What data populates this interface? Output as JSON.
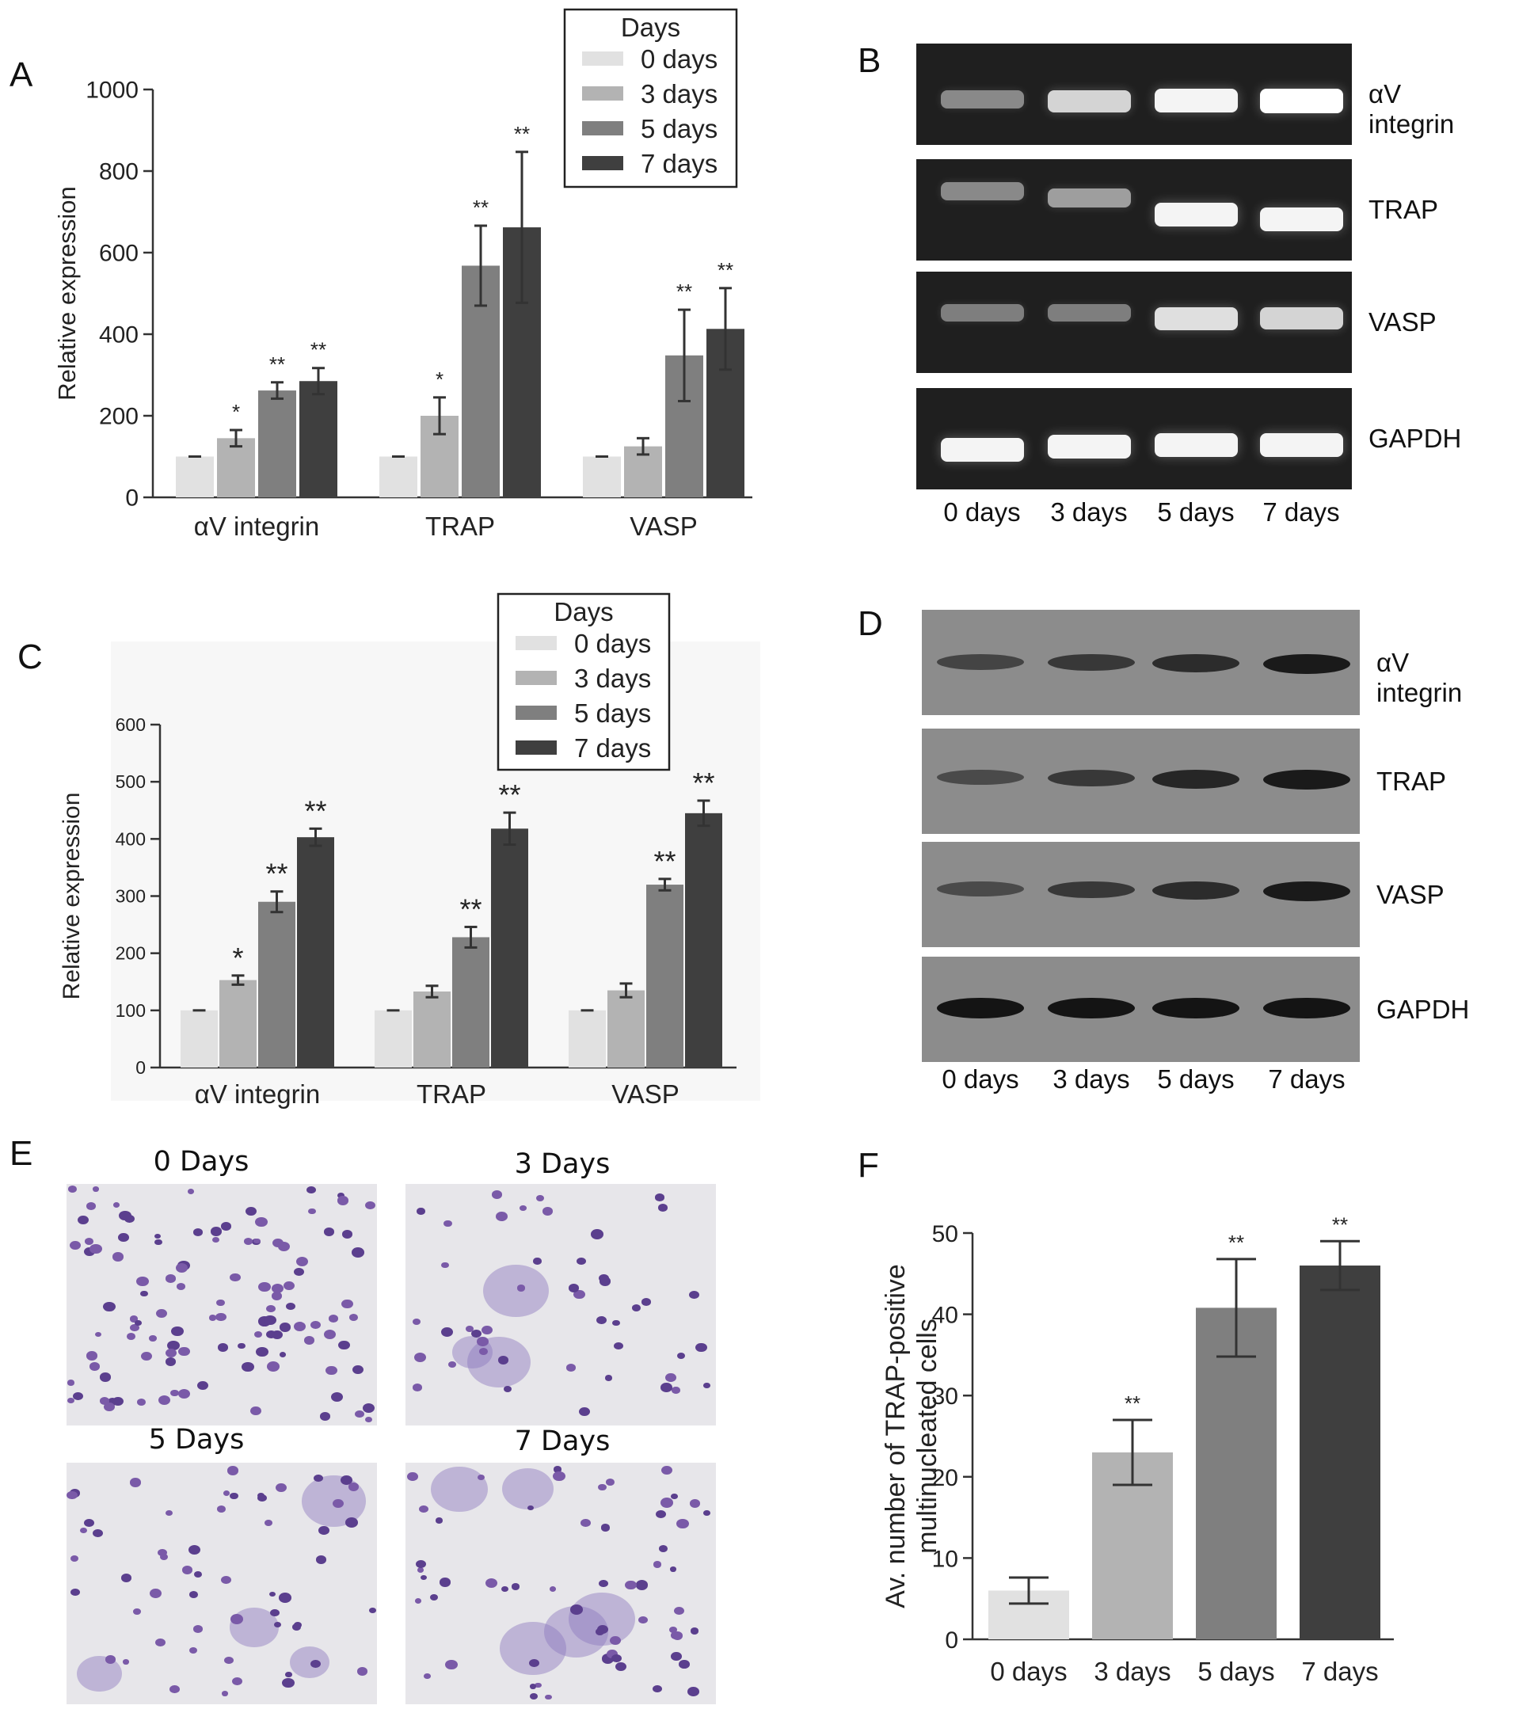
{
  "colors": {
    "d0": "#e1e1e1",
    "d3": "#b3b3b3",
    "d5": "#7f7f7f",
    "d7": "#3f3f3f"
  },
  "panels": {
    "A": {
      "letter": "A"
    },
    "B": {
      "letter": "B",
      "targets": [
        "αV integrin",
        "TRAP",
        "VASP",
        "GAPDH"
      ],
      "lanes": [
        "0 days",
        "3 days",
        "5 days",
        "7 days"
      ],
      "band_intensity": [
        [
          0.45,
          0.8,
          0.95,
          1.0
        ],
        [
          0.45,
          0.55,
          0.95,
          0.95
        ],
        [
          0.4,
          0.4,
          0.85,
          0.8
        ],
        [
          0.95,
          0.95,
          0.95,
          0.95
        ]
      ]
    },
    "C": {
      "letter": "C"
    },
    "D": {
      "letter": "D",
      "targets": [
        "αV integrin",
        "TRAP",
        "VASP",
        "GAPDH"
      ],
      "lanes": [
        "0 days",
        "3 days",
        "5 days",
        "7 days"
      ],
      "band_intensity": [
        [
          0.6,
          0.7,
          0.8,
          0.95
        ],
        [
          0.55,
          0.7,
          0.85,
          0.95
        ],
        [
          0.55,
          0.7,
          0.8,
          0.95
        ],
        [
          1.0,
          1.0,
          1.0,
          1.0
        ]
      ]
    },
    "E": {
      "letter": "E",
      "titles": [
        "0 Days",
        "3 Days",
        "5 Days",
        "7 Days"
      ]
    },
    "F": {
      "letter": "F"
    }
  },
  "chart_data": [
    {
      "id": "A",
      "type": "bar",
      "categories": [
        "αV integrin",
        "TRAP",
        "VASP"
      ],
      "ylabel": "Relative expression",
      "ylim": [
        0,
        1000
      ],
      "yticks": [
        0,
        200,
        400,
        600,
        800,
        1000
      ],
      "legend": {
        "title": "Days",
        "position": "top-right"
      },
      "series": [
        {
          "name": "0 days",
          "values": [
            100,
            100,
            100
          ],
          "errors": [
            0,
            0,
            0
          ],
          "sig": [
            "",
            "",
            ""
          ]
        },
        {
          "name": "3 days",
          "values": [
            145,
            200,
            125
          ],
          "errors": [
            20,
            45,
            20
          ],
          "sig": [
            "*",
            "*",
            ""
          ]
        },
        {
          "name": "5 days",
          "values": [
            262,
            568,
            348
          ],
          "errors": [
            20,
            98,
            112
          ],
          "sig": [
            "**",
            "**",
            "**"
          ]
        },
        {
          "name": "7 days",
          "values": [
            285,
            662,
            413
          ],
          "errors": [
            32,
            185,
            100
          ],
          "sig": [
            "**",
            "**",
            "**"
          ]
        }
      ]
    },
    {
      "id": "C",
      "type": "bar",
      "categories": [
        "αV integrin",
        "TRAP",
        "VASP"
      ],
      "ylabel": "Relative expression",
      "ylim": [
        0,
        600
      ],
      "yticks": [
        0,
        100,
        200,
        300,
        400,
        500,
        600
      ],
      "legend": {
        "title": "Days",
        "position": "top-right"
      },
      "series": [
        {
          "name": "0 days",
          "values": [
            100,
            100,
            100
          ],
          "errors": [
            0,
            0,
            0
          ],
          "sig": [
            "",
            "",
            ""
          ]
        },
        {
          "name": "3 days",
          "values": [
            153,
            133,
            135
          ],
          "errors": [
            8,
            10,
            12
          ],
          "sig": [
            "*",
            "",
            ""
          ]
        },
        {
          "name": "5 days",
          "values": [
            290,
            228,
            320
          ],
          "errors": [
            18,
            18,
            10
          ],
          "sig": [
            "**",
            "**",
            "**"
          ]
        },
        {
          "name": "7 days",
          "values": [
            403,
            418,
            445
          ],
          "errors": [
            15,
            28,
            22
          ],
          "sig": [
            "**",
            "**",
            "**"
          ]
        }
      ]
    },
    {
      "id": "F",
      "type": "bar",
      "categories": [
        "0 days",
        "3 days",
        "5 days",
        "7 days"
      ],
      "ylabel": "Av. number of TRAP-positive multinucleated cells",
      "ylim": [
        0,
        50
      ],
      "yticks": [
        0,
        10,
        20,
        30,
        40,
        50
      ],
      "values": [
        6,
        23,
        40.8,
        46
      ],
      "errors": [
        1.6,
        4,
        6,
        3
      ],
      "sig": [
        "",
        "**",
        "**",
        "**"
      ]
    }
  ]
}
